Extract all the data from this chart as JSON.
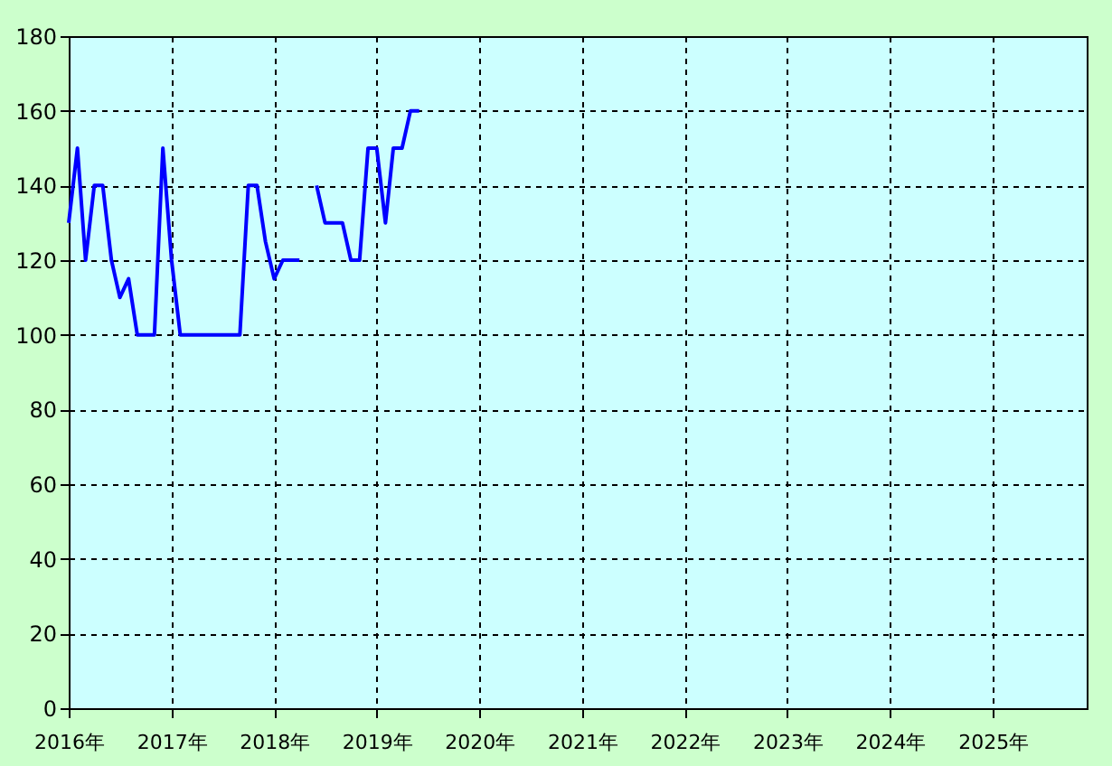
{
  "chart_data": {
    "type": "line",
    "x": [
      "2016-01",
      "2016-02",
      "2016-03",
      "2016-04",
      "2016-05",
      "2016-06",
      "2016-07",
      "2016-08",
      "2016-09",
      "2016-10",
      "2016-11",
      "2016-12",
      "2017-01",
      "2017-02",
      "2017-03",
      "2017-04",
      "2017-05",
      "2017-06",
      "2017-07",
      "2017-08",
      "2017-09",
      "2017-10",
      "2017-11",
      "2017-12",
      "2018-01",
      "2018-02",
      "2018-03",
      "2018-04",
      "2018-05",
      "2018-06",
      "2018-07",
      "2018-08",
      "2018-09",
      "2018-10",
      "2018-11",
      "2018-12",
      "2019-01",
      "2019-02",
      "2019-03",
      "2019-04",
      "2019-05",
      "2019-06"
    ],
    "series": [
      {
        "color": "#0000ff",
        "values": [
          130,
          150,
          120,
          140,
          140,
          120,
          110,
          115,
          100,
          100,
          100,
          150,
          120,
          100,
          100,
          100,
          100,
          100,
          100,
          100,
          100,
          140,
          140,
          125,
          115,
          120,
          120,
          120,
          null,
          140,
          130,
          130,
          130,
          120,
          120,
          150,
          150,
          130,
          150,
          150,
          160,
          160
        ]
      }
    ],
    "xlim": [
      "2016-01",
      "2025-12"
    ],
    "xticks": [
      {
        "value": "2016",
        "label": "2016年"
      },
      {
        "value": "2017",
        "label": "2017年"
      },
      {
        "value": "2018",
        "label": "2018年"
      },
      {
        "value": "2019",
        "label": "2019年"
      },
      {
        "value": "2020",
        "label": "2020年"
      },
      {
        "value": "2021",
        "label": "2021年"
      },
      {
        "value": "2022",
        "label": "2022年"
      },
      {
        "value": "2023",
        "label": "2023年"
      },
      {
        "value": "2024",
        "label": "2024年"
      },
      {
        "value": "2025",
        "label": "2025年"
      }
    ],
    "ylim": [
      0,
      180
    ],
    "yticks": [
      0,
      20,
      40,
      60,
      80,
      100,
      120,
      140,
      160,
      180
    ],
    "grid": true,
    "marker": "none",
    "line_style": "solid"
  }
}
